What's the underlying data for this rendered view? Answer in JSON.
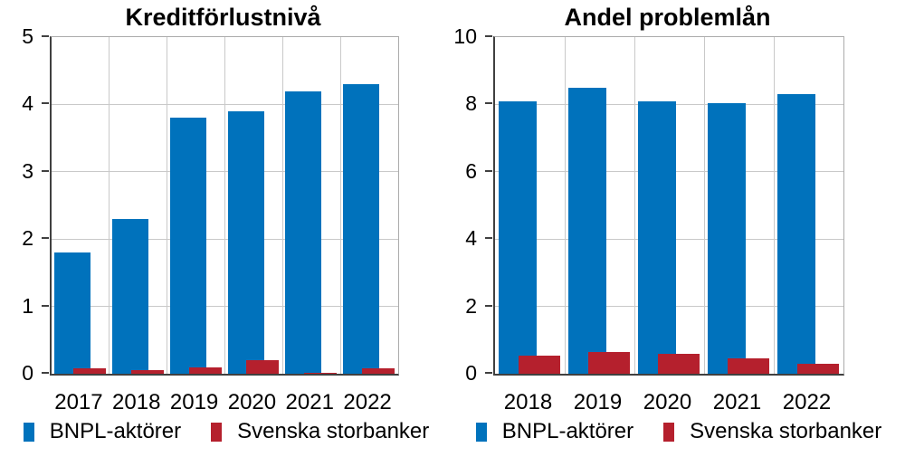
{
  "figure": {
    "background": "#ffffff"
  },
  "colors": {
    "bnpl_blue": "#0072BC",
    "storbanker_red": "#B5202D",
    "gridline": "#C9C9C9",
    "axis": "#404040",
    "plot_border": "#ABABAB",
    "text": "#000000"
  },
  "chart_data": [
    {
      "type": "bar",
      "title": "Kreditförlustnivå",
      "categories": [
        "2017",
        "2018",
        "2019",
        "2020",
        "2021",
        "2022"
      ],
      "series": [
        {
          "name": "BNPL-aktörer",
          "color": "#0072BC",
          "values": [
            1.8,
            2.3,
            3.8,
            3.9,
            4.2,
            4.3
          ]
        },
        {
          "name": "Svenska storbanker",
          "color": "#B5202D",
          "values": [
            0.08,
            0.05,
            0.09,
            0.2,
            0.02,
            0.08
          ]
        }
      ],
      "xlabel": "",
      "ylabel": "",
      "ylim": [
        0,
        5
      ],
      "yticks": [
        0,
        1,
        2,
        3,
        4,
        5
      ],
      "grid": true,
      "legend_position": "bottom"
    },
    {
      "type": "bar",
      "title": "Andel problemlån",
      "categories": [
        "2018",
        "2019",
        "2020",
        "2021",
        "2022"
      ],
      "series": [
        {
          "name": "BNPL-aktörer",
          "color": "#0072BC",
          "values": [
            8.1,
            8.5,
            8.1,
            8.05,
            8.3
          ]
        },
        {
          "name": "Svenska storbanker",
          "color": "#B5202D",
          "values": [
            0.55,
            0.65,
            0.6,
            0.45,
            0.3
          ]
        }
      ],
      "xlabel": "",
      "ylabel": "",
      "ylim": [
        0,
        10
      ],
      "yticks": [
        0,
        2,
        4,
        6,
        8,
        10
      ],
      "grid": true,
      "legend_position": "bottom"
    }
  ]
}
